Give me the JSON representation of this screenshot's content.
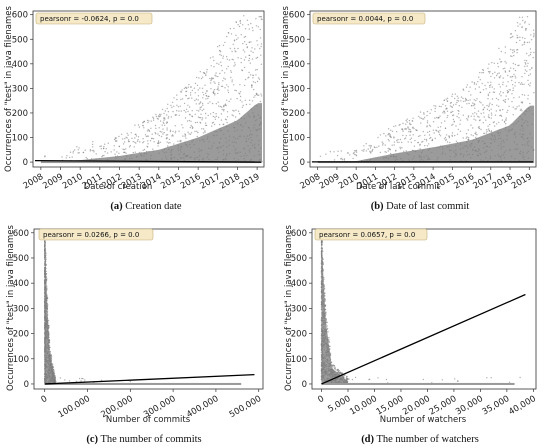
{
  "chart_data": [
    {
      "type": "scatter",
      "panel": "(a)",
      "caption_label": "(a)",
      "caption_text": "Creation date",
      "xlabel": "Date of creation",
      "ylabel": "Occurrences of \"test\" in java filenames",
      "annotation": "pearsonr = -0.0624, p = 0.0",
      "x_ticks": [
        "2008",
        "2009",
        "2010",
        "2011",
        "2012",
        "2013",
        "2014",
        "2015",
        "2016",
        "2017",
        "2018",
        "2019"
      ],
      "x_tick_values": [
        2008,
        2009,
        2010,
        2011,
        2012,
        2013,
        2014,
        2015,
        2016,
        2017,
        2018,
        2019
      ],
      "y_ticks": [
        "0",
        "100",
        "200",
        "300",
        "400",
        "500",
        "600"
      ],
      "y_tick_values": [
        0,
        100,
        200,
        300,
        400,
        500,
        600
      ],
      "xlim": [
        2007.6,
        2019.35
      ],
      "ylim": [
        -20,
        615
      ],
      "regression": {
        "x": [
          2007.7,
          2019.2
        ],
        "y": [
          6,
          0
        ]
      },
      "density_trend": {
        "x": [
          2008,
          2010,
          2012,
          2014,
          2016,
          2018,
          2019
        ],
        "y": [
          2,
          8,
          25,
          50,
          100,
          170,
          240
        ]
      },
      "x_date_axis": true
    },
    {
      "type": "scatter",
      "panel": "(b)",
      "caption_label": "(b)",
      "caption_text": "Date of last commit",
      "xlabel": "Date of last commit",
      "ylabel": "Occurrences of \"test\" in java filenames",
      "annotation": "pearsonr = 0.0044, p = 0.0",
      "x_ticks": [
        "2008",
        "2009",
        "2010",
        "2011",
        "2012",
        "2013",
        "2014",
        "2015",
        "2016",
        "2017",
        "2018",
        "2019"
      ],
      "x_tick_values": [
        2008,
        2009,
        2010,
        2011,
        2012,
        2013,
        2014,
        2015,
        2016,
        2017,
        2018,
        2019
      ],
      "y_ticks": [
        "0",
        "100",
        "200",
        "300",
        "400",
        "500",
        "600"
      ],
      "y_tick_values": [
        0,
        100,
        200,
        300,
        400,
        500,
        600
      ],
      "xlim": [
        2007.6,
        2019.35
      ],
      "ylim": [
        -20,
        615
      ],
      "regression": {
        "x": [
          2007.7,
          2019.2
        ],
        "y": [
          1,
          1
        ]
      },
      "density_trend": {
        "x": [
          2008,
          2010,
          2012,
          2014,
          2016,
          2018,
          2019
        ],
        "y": [
          0,
          4,
          35,
          60,
          90,
          150,
          230
        ]
      },
      "x_date_axis": true
    },
    {
      "type": "scatter",
      "panel": "(c)",
      "caption_label": "(c)",
      "caption_text": "The number of commits",
      "xlabel": "Number of commits",
      "ylabel": "Occurrences of \"test\" in java filenames",
      "annotation": "pearsonr = 0.0266, p = 0.0",
      "x_ticks": [
        "0",
        "100,000",
        "200,000",
        "300,000",
        "400,000",
        "500,000"
      ],
      "x_tick_values": [
        0,
        100000,
        200000,
        300000,
        400000,
        500000
      ],
      "y_ticks": [
        "0",
        "100",
        "200",
        "300",
        "400",
        "500",
        "600"
      ],
      "y_tick_values": [
        0,
        100,
        200,
        300,
        400,
        500,
        600
      ],
      "xlim": [
        -25000,
        510000
      ],
      "ylim": [
        -20,
        615
      ],
      "regression": {
        "x": [
          0,
          490000
        ],
        "y": [
          0,
          37
        ]
      },
      "density_trend": {
        "x": [
          0,
          5000,
          12000,
          25000
        ],
        "y": [
          600,
          350,
          120,
          10
        ]
      },
      "x_date_axis": false
    },
    {
      "type": "scatter",
      "panel": "(d)",
      "caption_label": "(d)",
      "caption_text": "The number of watchers",
      "xlabel": "Number of watchers",
      "ylabel": "Occurrences of \"test\" in java filenames",
      "annotation": "pearsonr = 0.0657, p = 0.0",
      "x_ticks": [
        "0",
        "5,000",
        "10,000",
        "15,000",
        "20,000",
        "25,000",
        "30,000",
        "35,000",
        "40,000"
      ],
      "x_tick_values": [
        0,
        5000,
        10000,
        15000,
        20000,
        25000,
        30000,
        35000,
        40000
      ],
      "y_ticks": [
        "0",
        "100",
        "200",
        "300",
        "400",
        "500",
        "600"
      ],
      "y_tick_values": [
        0,
        100,
        200,
        300,
        400,
        500,
        600
      ],
      "xlim": [
        -1800,
        40500
      ],
      "ylim": [
        -20,
        615
      ],
      "regression": {
        "x": [
          0,
          38500
        ],
        "y": [
          0,
          355
        ]
      },
      "density_trend": {
        "x": [
          0,
          300,
          800,
          2000,
          5000
        ],
        "y": [
          600,
          450,
          250,
          60,
          10
        ]
      },
      "x_date_axis": false
    }
  ]
}
